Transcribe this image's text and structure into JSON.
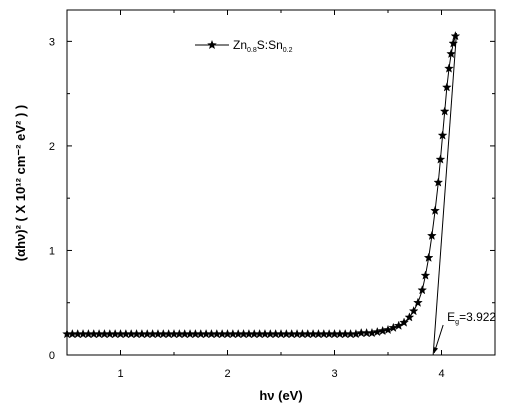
{
  "chart_data": {
    "type": "scatter",
    "xlabel": "hν (eV)",
    "ylabel": "(αhν)² ( X 10¹² cm⁻² eV² ) )",
    "xlim": [
      0.5,
      4.5
    ],
    "ylim": [
      0,
      3.3
    ],
    "xticks": [
      1,
      2,
      3,
      4
    ],
    "yticks": [
      0,
      1,
      2,
      3
    ],
    "grid": false,
    "legend_position": "top-center",
    "series": [
      {
        "name_parts": [
          "Zn",
          "0.8",
          "S:Sn",
          "0.2"
        ],
        "marker": "star",
        "line": true,
        "color": "#000000",
        "x": [
          0.5,
          0.55,
          0.6,
          0.65,
          0.7,
          0.75,
          0.8,
          0.85,
          0.9,
          0.95,
          1.0,
          1.05,
          1.1,
          1.15,
          1.2,
          1.25,
          1.3,
          1.35,
          1.4,
          1.45,
          1.5,
          1.55,
          1.6,
          1.65,
          1.7,
          1.75,
          1.8,
          1.85,
          1.9,
          1.95,
          2.0,
          2.05,
          2.1,
          2.15,
          2.2,
          2.25,
          2.3,
          2.35,
          2.4,
          2.45,
          2.5,
          2.55,
          2.6,
          2.65,
          2.7,
          2.75,
          2.8,
          2.85,
          2.9,
          2.95,
          3.0,
          3.05,
          3.1,
          3.15,
          3.2,
          3.25,
          3.3,
          3.35,
          3.4,
          3.45,
          3.5,
          3.55,
          3.6,
          3.65,
          3.7,
          3.74,
          3.78,
          3.82,
          3.85,
          3.88,
          3.91,
          3.94,
          3.97,
          3.99,
          4.01,
          4.03,
          4.05,
          4.07,
          4.09,
          4.11,
          4.13
        ],
        "y": [
          0.2,
          0.2,
          0.2,
          0.2,
          0.2,
          0.2,
          0.2,
          0.2,
          0.2,
          0.2,
          0.2,
          0.2,
          0.2,
          0.2,
          0.2,
          0.2,
          0.2,
          0.2,
          0.2,
          0.2,
          0.2,
          0.2,
          0.2,
          0.2,
          0.2,
          0.2,
          0.2,
          0.2,
          0.2,
          0.2,
          0.2,
          0.2,
          0.2,
          0.2,
          0.2,
          0.2,
          0.2,
          0.2,
          0.2,
          0.2,
          0.2,
          0.2,
          0.2,
          0.2,
          0.2,
          0.2,
          0.2,
          0.2,
          0.2,
          0.2,
          0.2,
          0.2,
          0.2,
          0.2,
          0.2,
          0.21,
          0.21,
          0.21,
          0.22,
          0.23,
          0.24,
          0.26,
          0.28,
          0.31,
          0.36,
          0.42,
          0.5,
          0.62,
          0.76,
          0.93,
          1.14,
          1.38,
          1.65,
          1.87,
          2.1,
          2.33,
          2.56,
          2.74,
          2.88,
          2.98,
          3.05
        ]
      }
    ],
    "annotations": [
      {
        "text_parts": [
          "E",
          "g",
          "=3.922"
        ],
        "fit_line": {
          "x": [
            3.922,
            4.14
          ],
          "y": [
            0,
            3.08
          ]
        },
        "arrow_to": {
          "x": 3.922,
          "y": 0
        }
      }
    ]
  }
}
